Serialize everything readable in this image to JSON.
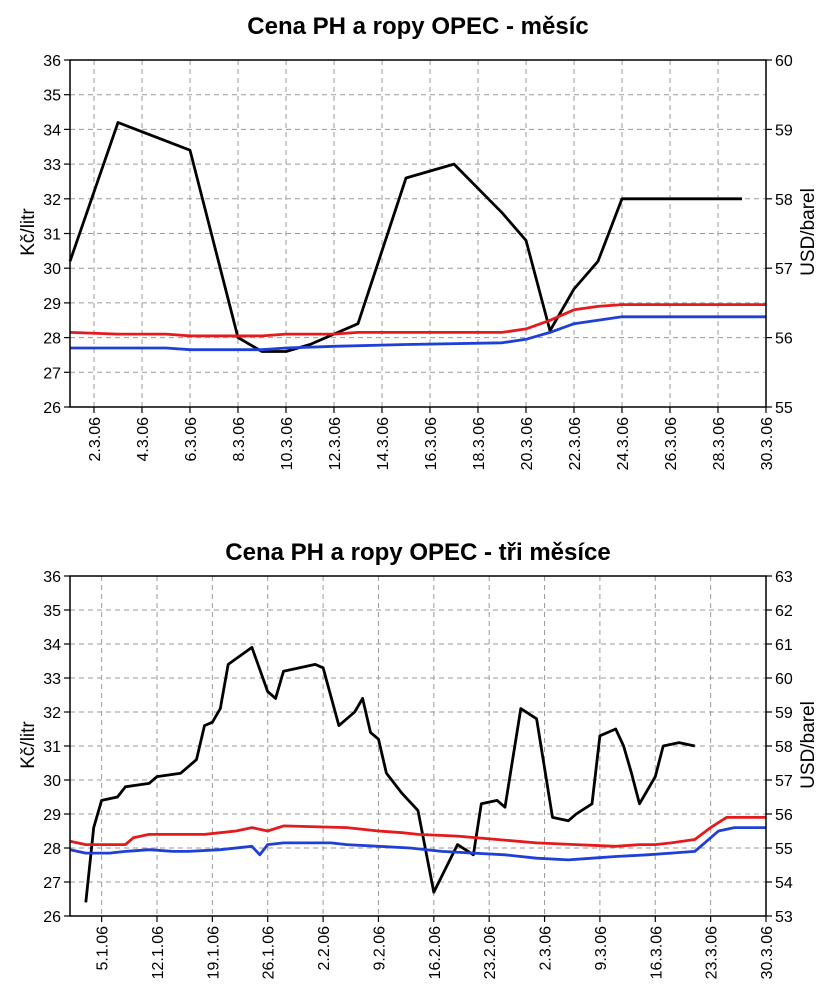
{
  "chart_data": [
    {
      "type": "line",
      "title": "Cena PH a ropy OPEC - měsíc",
      "ylabel": "Kč/litr",
      "y2label": "USD/barel",
      "ylim": [
        26,
        36
      ],
      "y2lim": [
        55,
        60
      ],
      "yticks": [
        "26",
        "27",
        "28",
        "29",
        "30",
        "31",
        "32",
        "33",
        "34",
        "35",
        "36"
      ],
      "y2ticks": [
        "55",
        "56",
        "57",
        "58",
        "59",
        "60"
      ],
      "xlim": [
        1,
        30
      ],
      "xticks": [
        {
          "x": 2,
          "label": "2.3.06"
        },
        {
          "x": 4,
          "label": "4.3.06"
        },
        {
          "x": 6,
          "label": "6.3.06"
        },
        {
          "x": 8,
          "label": "8.3.06"
        },
        {
          "x": 10,
          "label": "10.3.06"
        },
        {
          "x": 12,
          "label": "12.3.06"
        },
        {
          "x": 14,
          "label": "14.3.06"
        },
        {
          "x": 16,
          "label": "16.3.06"
        },
        {
          "x": 18,
          "label": "18.3.06"
        },
        {
          "x": 20,
          "label": "20.3.06"
        },
        {
          "x": 22,
          "label": "22.3.06"
        },
        {
          "x": 24,
          "label": "24.3.06"
        },
        {
          "x": 26,
          "label": "26.3.06"
        },
        {
          "x": 28,
          "label": "28.3.06"
        },
        {
          "x": 30,
          "label": "30.3.06"
        }
      ],
      "series": [
        {
          "color": "#000000",
          "axis": "right",
          "points": [
            [
              1,
              57.1
            ],
            [
              3,
              59.1
            ],
            [
              6,
              58.7
            ],
            [
              8,
              56.0
            ],
            [
              9,
              55.8
            ],
            [
              10,
              55.8
            ],
            [
              11,
              55.9
            ],
            [
              13,
              56.2
            ],
            [
              15,
              58.3
            ],
            [
              17,
              58.5
            ],
            [
              19,
              57.8
            ],
            [
              20,
              57.4
            ],
            [
              21,
              56.1
            ],
            [
              22,
              56.7
            ],
            [
              23,
              57.1
            ],
            [
              24,
              58.0
            ],
            [
              29,
              58.0
            ]
          ]
        },
        {
          "color": "#e41a1c",
          "axis": "left",
          "points": [
            [
              1,
              28.15
            ],
            [
              3,
              28.1
            ],
            [
              5,
              28.1
            ],
            [
              6,
              28.05
            ],
            [
              9,
              28.05
            ],
            [
              10,
              28.1
            ],
            [
              12,
              28.1
            ],
            [
              13,
              28.15
            ],
            [
              19,
              28.15
            ],
            [
              20,
              28.25
            ],
            [
              21,
              28.5
            ],
            [
              22,
              28.8
            ],
            [
              23,
              28.9
            ],
            [
              24,
              28.95
            ],
            [
              30,
              28.95
            ]
          ]
        },
        {
          "color": "#1f3fd6",
          "axis": "left",
          "points": [
            [
              1,
              27.7
            ],
            [
              3,
              27.7
            ],
            [
              5,
              27.7
            ],
            [
              6,
              27.65
            ],
            [
              9,
              27.65
            ],
            [
              10,
              27.7
            ],
            [
              12,
              27.75
            ],
            [
              15,
              27.8
            ],
            [
              19,
              27.85
            ],
            [
              20,
              27.95
            ],
            [
              21,
              28.15
            ],
            [
              22,
              28.4
            ],
            [
              23,
              28.5
            ],
            [
              24,
              28.6
            ],
            [
              30,
              28.6
            ]
          ]
        }
      ]
    },
    {
      "type": "line",
      "title": "Cena PH a ropy OPEC - tři měsíce",
      "ylabel": "Kč/litr",
      "y2label": "USD/barel",
      "ylim": [
        26,
        36
      ],
      "y2lim": [
        53,
        63
      ],
      "yticks": [
        "26",
        "27",
        "28",
        "29",
        "30",
        "31",
        "32",
        "33",
        "34",
        "35",
        "36"
      ],
      "y2ticks": [
        "53",
        "54",
        "55",
        "56",
        "57",
        "58",
        "59",
        "60",
        "61",
        "62",
        "63"
      ],
      "xlim": [
        1,
        89
      ],
      "xticks": [
        {
          "x": 5,
          "label": "5.1.06"
        },
        {
          "x": 12,
          "label": "12.1.06"
        },
        {
          "x": 19,
          "label": "19.1.06"
        },
        {
          "x": 26,
          "label": "26.1.06"
        },
        {
          "x": 33,
          "label": "2.2.06"
        },
        {
          "x": 40,
          "label": "9.2.06"
        },
        {
          "x": 47,
          "label": "16.2.06"
        },
        {
          "x": 54,
          "label": "23.2.06"
        },
        {
          "x": 61,
          "label": "2.3.06"
        },
        {
          "x": 68,
          "label": "9.3.06"
        },
        {
          "x": 75,
          "label": "16.3.06"
        },
        {
          "x": 82,
          "label": "23.3.06"
        },
        {
          "x": 89,
          "label": "30.3.06"
        }
      ],
      "series": [
        {
          "color": "#000000",
          "axis": "right",
          "points": [
            [
              3,
              53.4
            ],
            [
              4,
              55.6
            ],
            [
              5,
              56.4
            ],
            [
              7,
              56.5
            ],
            [
              8,
              56.8
            ],
            [
              11,
              56.9
            ],
            [
              12,
              57.1
            ],
            [
              15,
              57.2
            ],
            [
              17,
              57.6
            ],
            [
              18,
              58.6
            ],
            [
              19,
              58.7
            ],
            [
              20,
              59.1
            ],
            [
              21,
              60.4
            ],
            [
              24,
              60.9
            ],
            [
              26,
              59.6
            ],
            [
              27,
              59.4
            ],
            [
              28,
              60.2
            ],
            [
              32,
              60.4
            ],
            [
              33,
              60.3
            ],
            [
              35,
              58.6
            ],
            [
              37,
              59.0
            ],
            [
              38,
              59.4
            ],
            [
              39,
              58.4
            ],
            [
              40,
              58.2
            ],
            [
              41,
              57.2
            ],
            [
              43,
              56.6
            ],
            [
              45,
              56.1
            ],
            [
              47,
              53.7
            ],
            [
              50,
              55.1
            ],
            [
              52,
              54.8
            ],
            [
              53,
              56.3
            ],
            [
              55,
              56.4
            ],
            [
              56,
              56.2
            ],
            [
              58,
              59.1
            ],
            [
              60,
              58.8
            ],
            [
              62,
              55.9
            ],
            [
              64,
              55.8
            ],
            [
              65,
              56.0
            ],
            [
              67,
              56.3
            ],
            [
              68,
              58.3
            ],
            [
              70,
              58.5
            ],
            [
              71,
              58.0
            ],
            [
              72,
              57.2
            ],
            [
              73,
              56.3
            ],
            [
              75,
              57.1
            ],
            [
              76,
              58.0
            ],
            [
              78,
              58.1
            ],
            [
              80,
              58.0
            ]
          ]
        },
        {
          "color": "#e41a1c",
          "axis": "left",
          "points": [
            [
              1,
              28.2
            ],
            [
              3,
              28.1
            ],
            [
              8,
              28.1
            ],
            [
              9,
              28.3
            ],
            [
              11,
              28.4
            ],
            [
              18,
              28.4
            ],
            [
              20,
              28.45
            ],
            [
              22,
              28.5
            ],
            [
              24,
              28.6
            ],
            [
              26,
              28.5
            ],
            [
              28,
              28.65
            ],
            [
              36,
              28.6
            ],
            [
              40,
              28.5
            ],
            [
              43,
              28.45
            ],
            [
              45,
              28.4
            ],
            [
              50,
              28.35
            ],
            [
              55,
              28.25
            ],
            [
              60,
              28.15
            ],
            [
              65,
              28.1
            ],
            [
              70,
              28.05
            ],
            [
              73,
              28.1
            ],
            [
              75,
              28.1
            ],
            [
              77,
              28.15
            ],
            [
              80,
              28.25
            ],
            [
              82,
              28.6
            ],
            [
              84,
              28.9
            ],
            [
              89,
              28.9
            ]
          ]
        },
        {
          "color": "#1f3fd6",
          "axis": "left",
          "points": [
            [
              1,
              27.95
            ],
            [
              3,
              27.85
            ],
            [
              6,
              27.85
            ],
            [
              8,
              27.9
            ],
            [
              11,
              27.95
            ],
            [
              14,
              27.9
            ],
            [
              16,
              27.9
            ],
            [
              20,
              27.95
            ],
            [
              24,
              28.05
            ],
            [
              25,
              27.8
            ],
            [
              26,
              28.1
            ],
            [
              28,
              28.15
            ],
            [
              34,
              28.15
            ],
            [
              36,
              28.1
            ],
            [
              40,
              28.05
            ],
            [
              44,
              28.0
            ],
            [
              48,
              27.9
            ],
            [
              52,
              27.85
            ],
            [
              56,
              27.8
            ],
            [
              60,
              27.7
            ],
            [
              64,
              27.65
            ],
            [
              67,
              27.7
            ],
            [
              70,
              27.75
            ],
            [
              74,
              27.8
            ],
            [
              77,
              27.85
            ],
            [
              80,
              27.9
            ],
            [
              82,
              28.3
            ],
            [
              83,
              28.5
            ],
            [
              85,
              28.6
            ],
            [
              89,
              28.6
            ]
          ]
        }
      ]
    }
  ]
}
